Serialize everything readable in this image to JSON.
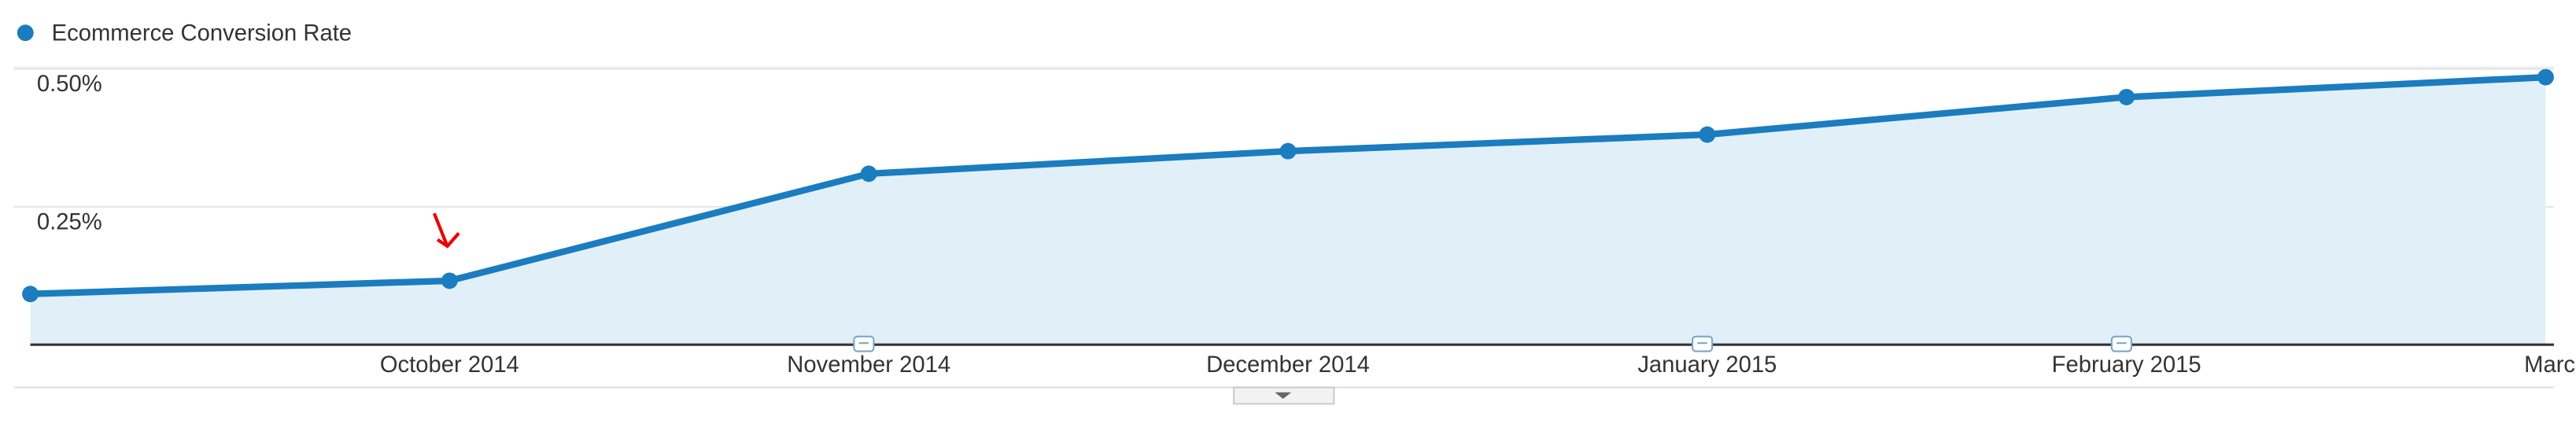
{
  "chart_data": {
    "type": "line",
    "categories": [
      null,
      "October 2014",
      "November 2014",
      "December 2014",
      "January 2015",
      "February 2015",
      "Marc"
    ],
    "series": [
      {
        "name": "Ecommerce Conversion Rate",
        "color": "#1b7cc0",
        "values": [
          0.092,
          0.116,
          0.31,
          0.351,
          0.381,
          0.449,
          0.485
        ]
      }
    ],
    "ylim": [
      0,
      0.5
    ],
    "yticks": [
      {
        "value": 0.5,
        "label": "0.50%"
      },
      {
        "value": 0.25,
        "label": "0.25%"
      }
    ],
    "grid": true
  }
}
